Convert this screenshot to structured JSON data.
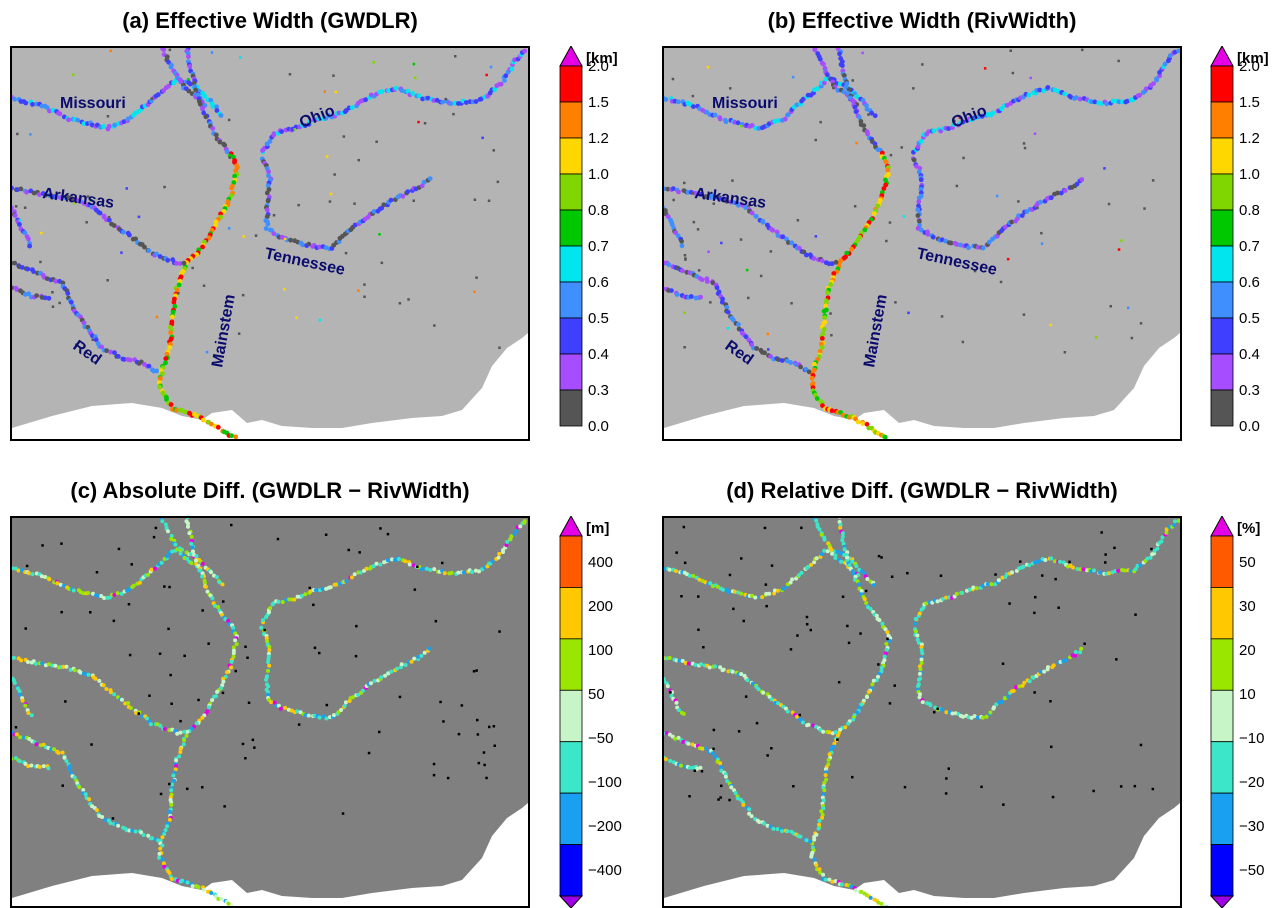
{
  "panels": [
    {
      "title": "(a) Effective Width (GWDLR)",
      "type": "width",
      "labels": {
        "missouri": "Missouri",
        "ohio": "Ohio",
        "arkansas": "Arkansas",
        "tennessee": "Tennessee",
        "mainstem": "Mainstem",
        "red": "Red"
      },
      "colorbar": {
        "unit": "[km]",
        "ticks": [
          "2.0",
          "1.5",
          "1.2",
          "1.0",
          "0.8",
          "0.7",
          "0.6",
          "0.5",
          "0.4",
          "0.3",
          "0.0"
        ],
        "colors": [
          "#ff0000",
          "#ff7f00",
          "#ffd700",
          "#7fd600",
          "#00c800",
          "#00e5ee",
          "#3f8fff",
          "#3f3fff",
          "#a64dff",
          "#555555"
        ],
        "top_arrow": "#e600e6",
        "bottom_arrow": null
      }
    },
    {
      "title": "(b) Effective Width (RivWidth)",
      "type": "width",
      "labels": {
        "missouri": "Missouri",
        "ohio": "Ohio",
        "arkansas": "Arkansas",
        "tennessee": "Tennessee",
        "mainstem": "Mainstem",
        "red": "Red"
      },
      "colorbar": {
        "unit": "[km]",
        "ticks": [
          "2.0",
          "1.5",
          "1.2",
          "1.0",
          "0.8",
          "0.7",
          "0.6",
          "0.5",
          "0.4",
          "0.3",
          "0.0"
        ],
        "colors": [
          "#ff0000",
          "#ff7f00",
          "#ffd700",
          "#7fd600",
          "#00c800",
          "#00e5ee",
          "#3f8fff",
          "#3f3fff",
          "#a64dff",
          "#555555"
        ],
        "top_arrow": "#e600e6",
        "bottom_arrow": null
      }
    },
    {
      "title": "(c) Absolute Diff. (GWDLR − RivWidth)",
      "type": "diff",
      "colorbar": {
        "unit": "[m]",
        "ticks": [
          "400",
          "200",
          "100",
          "50",
          "−50",
          "−100",
          "−200",
          "−400"
        ],
        "colors": [
          "#ff5a00",
          "#ffc800",
          "#9be600",
          "#c8f5c8",
          "#3ce6c8",
          "#19a0f0",
          "#0000ff"
        ],
        "top_arrow": "#e600e6",
        "bottom_arrow": "#a000e6"
      }
    },
    {
      "title": "(d) Relative Diff. (GWDLR − RivWidth)",
      "type": "diff",
      "colorbar": {
        "unit": "[%]",
        "ticks": [
          "50",
          "30",
          "20",
          "10",
          "−10",
          "−20",
          "−30",
          "−50"
        ],
        "colors": [
          "#ff5a00",
          "#ffc800",
          "#9be600",
          "#c8f5c8",
          "#3ce6c8",
          "#19a0f0",
          "#0000ff"
        ],
        "top_arrow": "#e600e6",
        "bottom_arrow": "#a000e6"
      }
    }
  ],
  "map_colors": {
    "land_width": "#b4b4b4",
    "land_diff": "#808080",
    "ocean": "#ffffff"
  }
}
